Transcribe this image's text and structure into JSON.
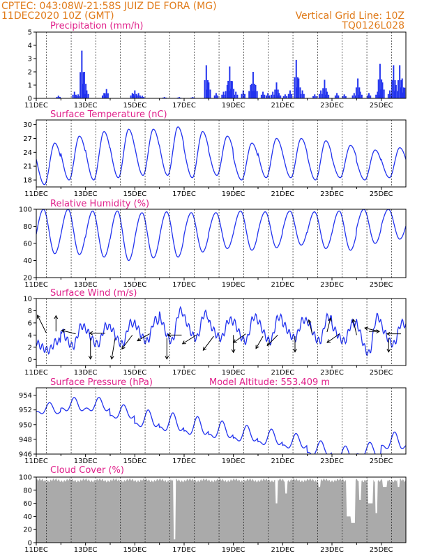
{
  "header": {
    "left_line1": "CPTEC:  043:08W-21:58S  JUIZ DE FORA (MG)",
    "left_line2": "11DEC2020 10Z (GMT)",
    "right_line1": "Vertical Grid Line: 10Z",
    "right_line2": "TQ0126L028"
  },
  "colors": {
    "header": "#e07b1a",
    "title": "#e0208a",
    "series": "#2233ee",
    "cloud": "#aaaaaa",
    "arrow": "#000000"
  },
  "x_axis": {
    "start_day": 11,
    "end_day": 26,
    "ticks": [
      "11DEC",
      "13DEC",
      "15DEC",
      "17DEC",
      "19DEC",
      "21DEC",
      "23DEC",
      "25DEC"
    ]
  },
  "chart_data": [
    {
      "id": "precip",
      "type": "bar",
      "title": "Precipitation (mm/h)",
      "ylim": [
        0,
        5
      ],
      "yticks": [
        0,
        1,
        2,
        3,
        4,
        5
      ],
      "events": [
        [
          11.9,
          0.2
        ],
        [
          12.55,
          0.5
        ],
        [
          12.7,
          0.3
        ],
        [
          12.85,
          3.6
        ],
        [
          12.95,
          2.0
        ],
        [
          13.05,
          0.6
        ],
        [
          13.75,
          0.4
        ],
        [
          13.85,
          0.7
        ],
        [
          14.9,
          0.4
        ],
        [
          15.0,
          0.6
        ],
        [
          15.15,
          0.4
        ],
        [
          15.3,
          0.2
        ],
        [
          16.2,
          0.1
        ],
        [
          16.8,
          0.1
        ],
        [
          17.35,
          0.1
        ],
        [
          17.9,
          2.5
        ],
        [
          18.0,
          1.2
        ],
        [
          18.3,
          0.4
        ],
        [
          18.6,
          0.5
        ],
        [
          18.75,
          1.0
        ],
        [
          18.85,
          2.4
        ],
        [
          18.95,
          1.3
        ],
        [
          19.1,
          0.5
        ],
        [
          19.4,
          0.6
        ],
        [
          19.7,
          1.0
        ],
        [
          19.8,
          2.0
        ],
        [
          19.9,
          1.0
        ],
        [
          20.2,
          0.5
        ],
        [
          20.4,
          0.4
        ],
        [
          20.6,
          0.5
        ],
        [
          20.75,
          1.2
        ],
        [
          20.85,
          0.4
        ],
        [
          21.1,
          0.3
        ],
        [
          21.3,
          0.6
        ],
        [
          21.55,
          2.9
        ],
        [
          21.65,
          1.5
        ],
        [
          21.8,
          0.6
        ],
        [
          22.3,
          0.3
        ],
        [
          22.55,
          0.6
        ],
        [
          22.7,
          1.4
        ],
        [
          22.8,
          0.5
        ],
        [
          23.2,
          0.4
        ],
        [
          23.5,
          0.3
        ],
        [
          23.9,
          0.4
        ],
        [
          24.05,
          1.5
        ],
        [
          24.15,
          0.5
        ],
        [
          24.5,
          0.4
        ],
        [
          24.85,
          0.5
        ],
        [
          24.95,
          2.6
        ],
        [
          25.05,
          1.2
        ],
        [
          25.35,
          0.6
        ],
        [
          25.5,
          2.5
        ],
        [
          25.6,
          1.0
        ],
        [
          25.75,
          2.5
        ],
        [
          25.85,
          1.5
        ],
        [
          25.95,
          0.8
        ]
      ]
    },
    {
      "id": "temp",
      "type": "line",
      "title": "Surface Temperature (nC)",
      "ylim": [
        16.5,
        31
      ],
      "yticks": [
        18,
        21,
        24,
        27,
        30
      ],
      "tmin": [
        17.0,
        18.0,
        18.0,
        18.5,
        19.0,
        19.0,
        18.5,
        19.0,
        18.0,
        18.5,
        18.5,
        18.0,
        18.5,
        18.0,
        18.5
      ],
      "tmax": [
        26.0,
        27.5,
        28.5,
        29.0,
        29.0,
        29.5,
        28.5,
        27.5,
        26.0,
        27.0,
        27.0,
        26.5,
        25.5,
        24.5,
        25.0
      ]
    },
    {
      "id": "rh",
      "type": "line",
      "title": "Relative Humidity (%)",
      "ylim": [
        20,
        100
      ],
      "yticks": [
        20,
        40,
        60,
        80,
        100
      ],
      "rhmax": [
        100,
        100,
        98,
        98,
        96,
        97,
        96,
        96,
        98,
        97,
        98,
        97,
        98,
        100,
        100
      ],
      "rhmin": [
        48,
        47,
        44,
        40,
        43,
        44,
        50,
        54,
        52,
        55,
        58,
        54,
        52,
        60,
        65
      ]
    },
    {
      "id": "wind",
      "type": "line",
      "title": "Surface Wind (m/s)",
      "ylim": [
        -1,
        10
      ],
      "yticks": [
        0,
        2,
        4,
        6,
        8,
        10
      ],
      "speed_max": [
        3.0,
        5.5,
        5.5,
        6.0,
        6.5,
        8.0,
        7.5,
        6.5,
        7.0,
        7.0,
        6.5,
        7.0,
        6.0,
        7.0,
        6.0
      ],
      "speed_min": [
        1.5,
        2.2,
        2.5,
        2.5,
        3.0,
        3.0,
        3.5,
        3.5,
        3.0,
        3.0,
        3.5,
        3.0,
        3.0,
        1.0,
        2.5
      ],
      "vectors": [
        [
          11.4,
          4.4,
          -25,
          -50
        ],
        [
          11.8,
          4.6,
          0,
          -45
        ],
        [
          12.6,
          4.2,
          -40,
          -10
        ],
        [
          13.2,
          3.5,
          0,
          60
        ],
        [
          13.8,
          4.3,
          -45,
          0
        ],
        [
          14.2,
          3.5,
          -10,
          60
        ],
        [
          14.9,
          4.0,
          -30,
          40
        ],
        [
          15.6,
          4.2,
          -35,
          20
        ],
        [
          16.3,
          3.5,
          0,
          60
        ],
        [
          16.9,
          4.0,
          -40,
          0
        ],
        [
          17.5,
          4.0,
          -40,
          25
        ],
        [
          18.2,
          3.8,
          -30,
          40
        ],
        [
          19.0,
          4.0,
          0,
          50
        ],
        [
          19.5,
          4.2,
          -35,
          25
        ],
        [
          20.2,
          3.8,
          -20,
          35
        ],
        [
          20.8,
          4.0,
          -30,
          30
        ],
        [
          21.5,
          3.8,
          0,
          45
        ],
        [
          22.2,
          4.2,
          -10,
          -40
        ],
        [
          22.8,
          4.5,
          10,
          -40
        ],
        [
          23.3,
          4.2,
          -35,
          25
        ],
        [
          24.0,
          4.0,
          -10,
          -45
        ],
        [
          24.5,
          4.6,
          30,
          0
        ],
        [
          24.9,
          4.6,
          -40,
          -10
        ],
        [
          25.3,
          3.5,
          0,
          40
        ],
        [
          25.8,
          4.2,
          -40,
          0
        ]
      ]
    },
    {
      "id": "pressure",
      "type": "line",
      "title": "Surface Pressure (hPa)",
      "title2": "Model Altitude: 553.409 m",
      "ylim": [
        946,
        955
      ],
      "yticks": [
        946,
        948,
        950,
        952,
        954
      ],
      "pmean": [
        952.0,
        952.5,
        952.5,
        951.5,
        950.5,
        950.0,
        949.5,
        949.0,
        948.5,
        948.0,
        947.5,
        946.5,
        945.8,
        946.3,
        947.5
      ],
      "pamp": [
        1.0,
        1.2,
        1.2,
        1.2,
        1.5,
        1.6,
        1.6,
        1.5,
        1.4,
        1.4,
        1.3,
        1.3,
        1.3,
        1.3,
        1.5
      ]
    },
    {
      "id": "cloud",
      "type": "area",
      "title": "Cloud Cover (%)",
      "ylim": [
        0,
        100
      ],
      "yticks": [
        0,
        20,
        40,
        60,
        80,
        100
      ],
      "base": 95,
      "dips": [
        [
          16.6,
          5,
          0.05
        ],
        [
          20.75,
          60,
          0.05
        ],
        [
          21.15,
          75,
          0.05
        ],
        [
          22.5,
          85,
          0.05
        ],
        [
          23.7,
          40,
          0.12
        ],
        [
          23.85,
          30,
          0.08
        ],
        [
          24.15,
          65,
          0.05
        ],
        [
          24.55,
          60,
          0.1
        ],
        [
          24.8,
          45,
          0.05
        ],
        [
          25.15,
          85,
          0.08
        ],
        [
          25.7,
          85,
          0.05
        ]
      ]
    }
  ]
}
